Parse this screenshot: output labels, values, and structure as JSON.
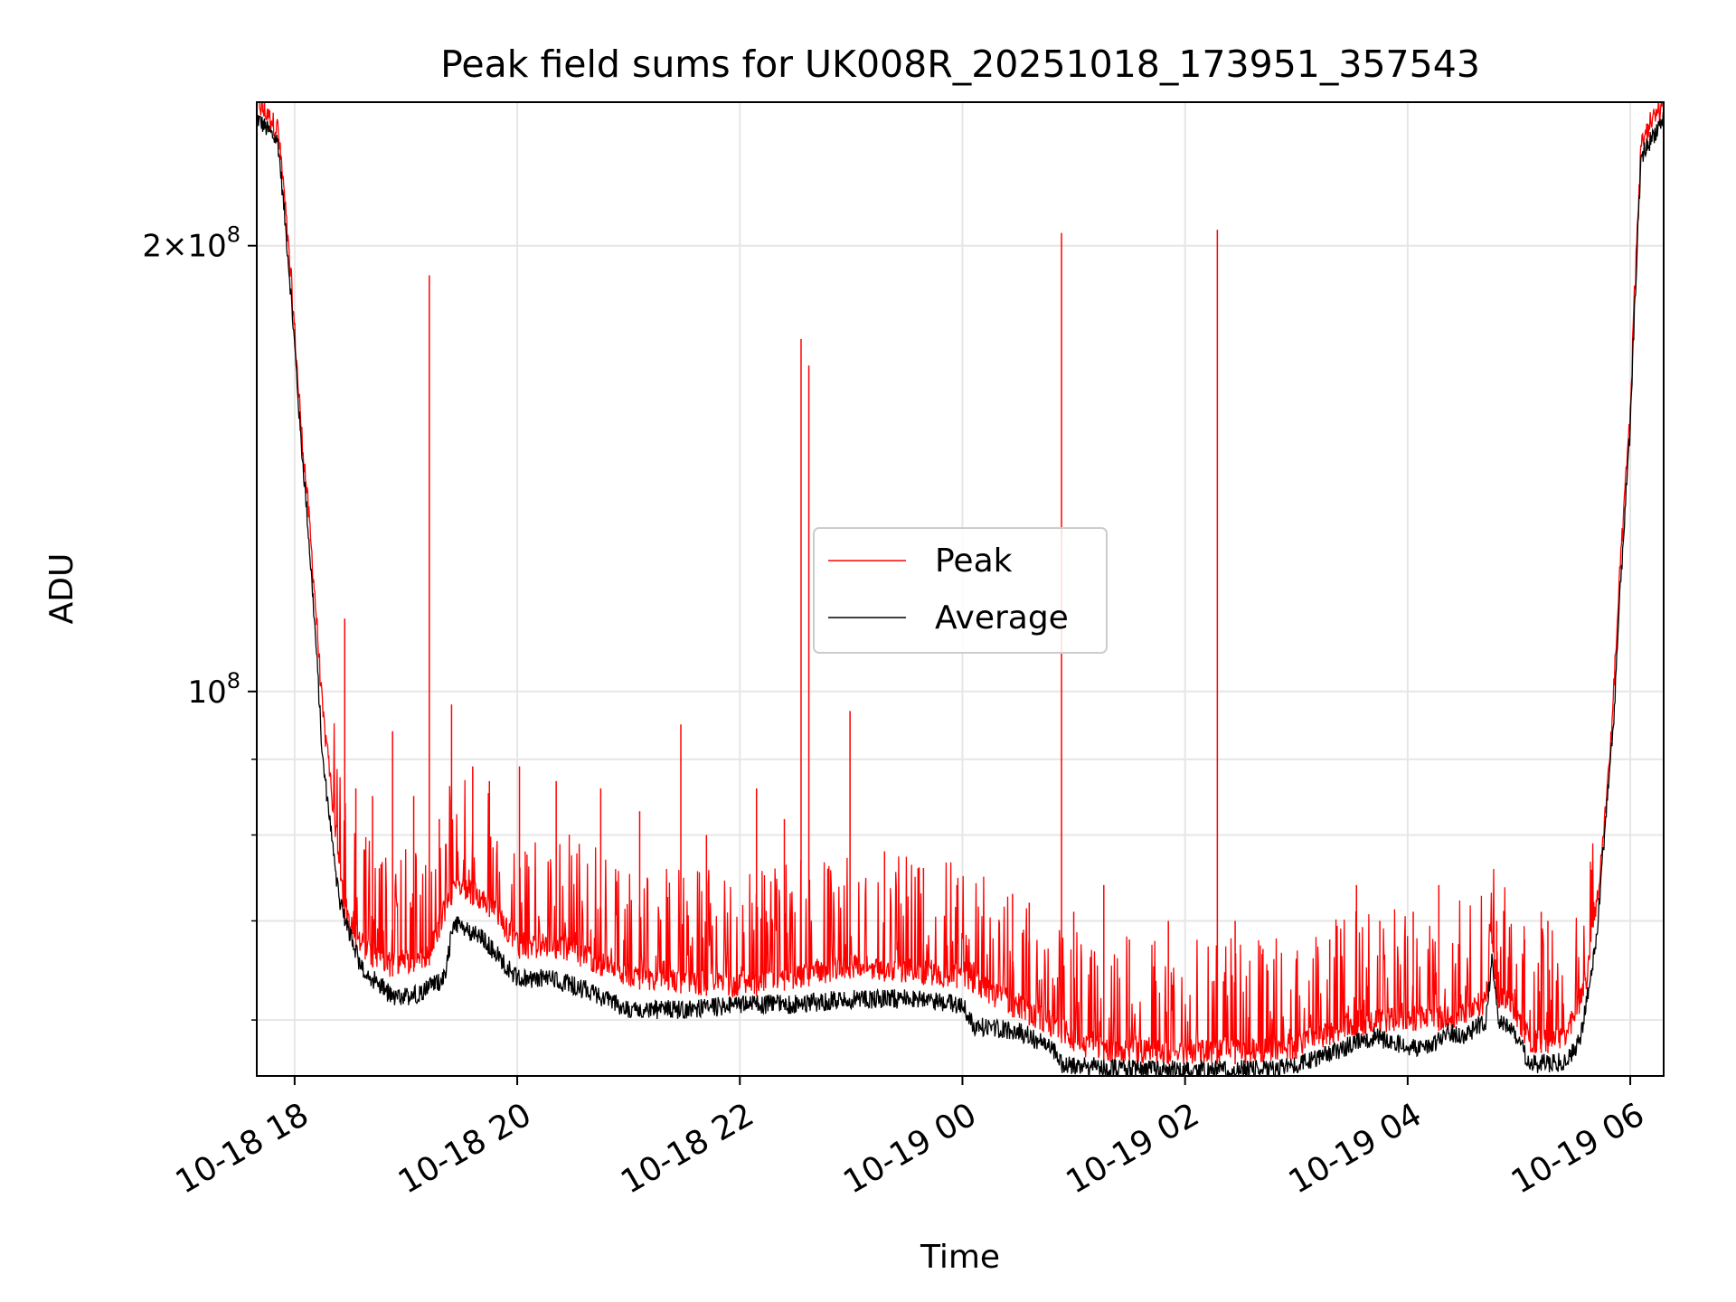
{
  "chart_data": {
    "type": "line",
    "title": "Peak field sums for UK008R_20251018_173951_357543",
    "xlabel": "Time",
    "ylabel": "ADU",
    "yscale": "log",
    "xlim_hours": [
      17.66,
      30.3
    ],
    "ylim": [
      55000000,
      250000000
    ],
    "grid": true,
    "legend": {
      "position": "center",
      "entries": [
        "Peak",
        "Average"
      ]
    },
    "x_ticks": [
      {
        "hours": 18,
        "label": "10-18 18"
      },
      {
        "hours": 20,
        "label": "10-18 20"
      },
      {
        "hours": 22,
        "label": "10-18 22"
      },
      {
        "hours": 24,
        "label": "10-19 00"
      },
      {
        "hours": 26,
        "label": "10-19 02"
      },
      {
        "hours": 28,
        "label": "10-19 04"
      },
      {
        "hours": 30,
        "label": "10-19 06"
      }
    ],
    "y_major_ticks": [
      {
        "value": 100000000,
        "base": "10",
        "exp": "8",
        "coef": ""
      },
      {
        "value": 200000000,
        "base": "10",
        "exp": "8",
        "coef": "2×"
      }
    ],
    "y_minor_ticks": [
      60000000,
      70000000,
      80000000,
      90000000
    ],
    "series": [
      {
        "name": "Peak",
        "color": "#ff0000",
        "baseline": [
          [
            17.66,
            244000000.0
          ],
          [
            17.85,
            235000000.0
          ],
          [
            18.05,
            150000000.0
          ],
          [
            18.25,
            95000000.0
          ],
          [
            18.45,
            68000000.0
          ],
          [
            18.8,
            64000000.0
          ],
          [
            19.2,
            65000000.0
          ],
          [
            19.45,
            73000000.0
          ],
          [
            19.8,
            70000000.0
          ],
          [
            20.0,
            66000000.0
          ],
          [
            20.4,
            66000000.0
          ],
          [
            21.0,
            63000000.0
          ],
          [
            22.0,
            62000000.0
          ],
          [
            23.0,
            64000000.0
          ],
          [
            24.0,
            63000000.0
          ],
          [
            24.4,
            60500000.0
          ],
          [
            24.8,
            58500000.0
          ],
          [
            25.1,
            56500000.0
          ],
          [
            25.5,
            56000000.0
          ],
          [
            26.0,
            56000000.0
          ],
          [
            26.5,
            56000000.0
          ],
          [
            27.0,
            56500000.0
          ],
          [
            27.5,
            58500000.0
          ],
          [
            28.0,
            59000000.0
          ],
          [
            28.4,
            59000000.0
          ],
          [
            28.7,
            60500000.0
          ],
          [
            28.9,
            60500000.0
          ],
          [
            29.1,
            57000000.0
          ],
          [
            29.4,
            57000000.0
          ],
          [
            29.6,
            62000000.0
          ],
          [
            29.8,
            80000000.0
          ],
          [
            30.0,
            150000000.0
          ],
          [
            30.1,
            230000000.0
          ],
          [
            30.3,
            244000000.0
          ]
        ],
        "spikes": [
          [
            18.45,
            112000000.0
          ],
          [
            19.21,
            191000000.0
          ],
          [
            19.41,
            98000000.0
          ],
          [
            18.88,
            94000000.0
          ],
          [
            20.02,
            89000000.0
          ],
          [
            21.47,
            95000000.0
          ],
          [
            22.55,
            173000000.0
          ],
          [
            22.62,
            166000000.0
          ],
          [
            22.99,
            97000000.0
          ],
          [
            24.89,
            204000000.0
          ],
          [
            26.29,
            205000000.0
          ],
          [
            25.27,
            74000000.0
          ],
          [
            27.54,
            74000000.0
          ],
          [
            28.28,
            74000000.0
          ],
          [
            29.26,
            70000000.0
          ],
          [
            18.55,
            86000000.0
          ],
          [
            18.7,
            85000000.0
          ],
          [
            19.07,
            85000000.0
          ],
          [
            19.3,
            82000000.0
          ],
          [
            19.6,
            89000000.0
          ],
          [
            19.75,
            87000000.0
          ],
          [
            20.35,
            87000000.0
          ],
          [
            20.75,
            86000000.0
          ],
          [
            21.1,
            83000000.0
          ],
          [
            21.7,
            80000000.0
          ],
          [
            22.15,
            86000000.0
          ],
          [
            22.4,
            82000000.0
          ],
          [
            23.3,
            78000000.0
          ],
          [
            23.65,
            76000000.0
          ],
          [
            23.95,
            74000000.0
          ],
          [
            24.45,
            73000000.0
          ],
          [
            24.6,
            72000000.0
          ],
          [
            25.0,
            71000000.0
          ],
          [
            25.5,
            68000000.0
          ],
          [
            25.85,
            70000000.0
          ],
          [
            26.45,
            70000000.0
          ],
          [
            26.7,
            67000000.0
          ],
          [
            27.0,
            66000000.0
          ],
          [
            27.3,
            68000000.0
          ],
          [
            27.75,
            70000000.0
          ],
          [
            28.05,
            71000000.0
          ],
          [
            28.8,
            70000000.0
          ],
          [
            29.05,
            68000000.0
          ],
          [
            29.2,
            71000000.0
          ]
        ]
      },
      {
        "name": "Average",
        "color": "#000000",
        "points": [
          [
            17.66,
            244000000.0
          ],
          [
            17.85,
            235000000.0
          ],
          [
            18.05,
            150000000.0
          ],
          [
            18.25,
            90000000.0
          ],
          [
            18.4,
            72000000.0
          ],
          [
            18.6,
            65000000.0
          ],
          [
            18.9,
            62000000.0
          ],
          [
            19.1,
            62500000.0
          ],
          [
            19.35,
            64000000.0
          ],
          [
            19.43,
            70000000.0
          ],
          [
            19.55,
            69000000.0
          ],
          [
            19.7,
            68000000.0
          ],
          [
            20.0,
            64000000.0
          ],
          [
            20.3,
            64000000.0
          ],
          [
            20.6,
            63000000.0
          ],
          [
            21.0,
            61000000.0
          ],
          [
            21.6,
            61000000.0
          ],
          [
            22.0,
            61500000.0
          ],
          [
            22.5,
            61500000.0
          ],
          [
            23.0,
            62000000.0
          ],
          [
            23.5,
            62000000.0
          ],
          [
            24.0,
            61500000.0
          ],
          [
            24.1,
            59500000.0
          ],
          [
            24.5,
            59000000.0
          ],
          [
            24.8,
            57500000.0
          ],
          [
            24.9,
            56000000.0
          ],
          [
            25.3,
            55700000.0
          ],
          [
            25.8,
            55500000.0
          ],
          [
            26.3,
            55600000.0
          ],
          [
            26.8,
            55500000.0
          ],
          [
            27.2,
            56500000.0
          ],
          [
            27.5,
            57800000.0
          ],
          [
            27.7,
            58500000.0
          ],
          [
            28.0,
            57500000.0
          ],
          [
            28.2,
            57500000.0
          ],
          [
            28.35,
            59000000.0
          ],
          [
            28.5,
            58500000.0
          ],
          [
            28.7,
            60000000.0
          ],
          [
            28.76,
            66000000.0
          ],
          [
            28.82,
            60000000.0
          ],
          [
            28.95,
            59000000.0
          ],
          [
            29.1,
            56000000.0
          ],
          [
            29.4,
            56200000.0
          ],
          [
            29.55,
            58000000.0
          ],
          [
            29.7,
            68000000.0
          ],
          [
            29.85,
            95000000.0
          ],
          [
            30.0,
            150000000.0
          ],
          [
            30.1,
            230000000.0
          ],
          [
            30.3,
            244000000.0
          ]
        ]
      }
    ]
  }
}
